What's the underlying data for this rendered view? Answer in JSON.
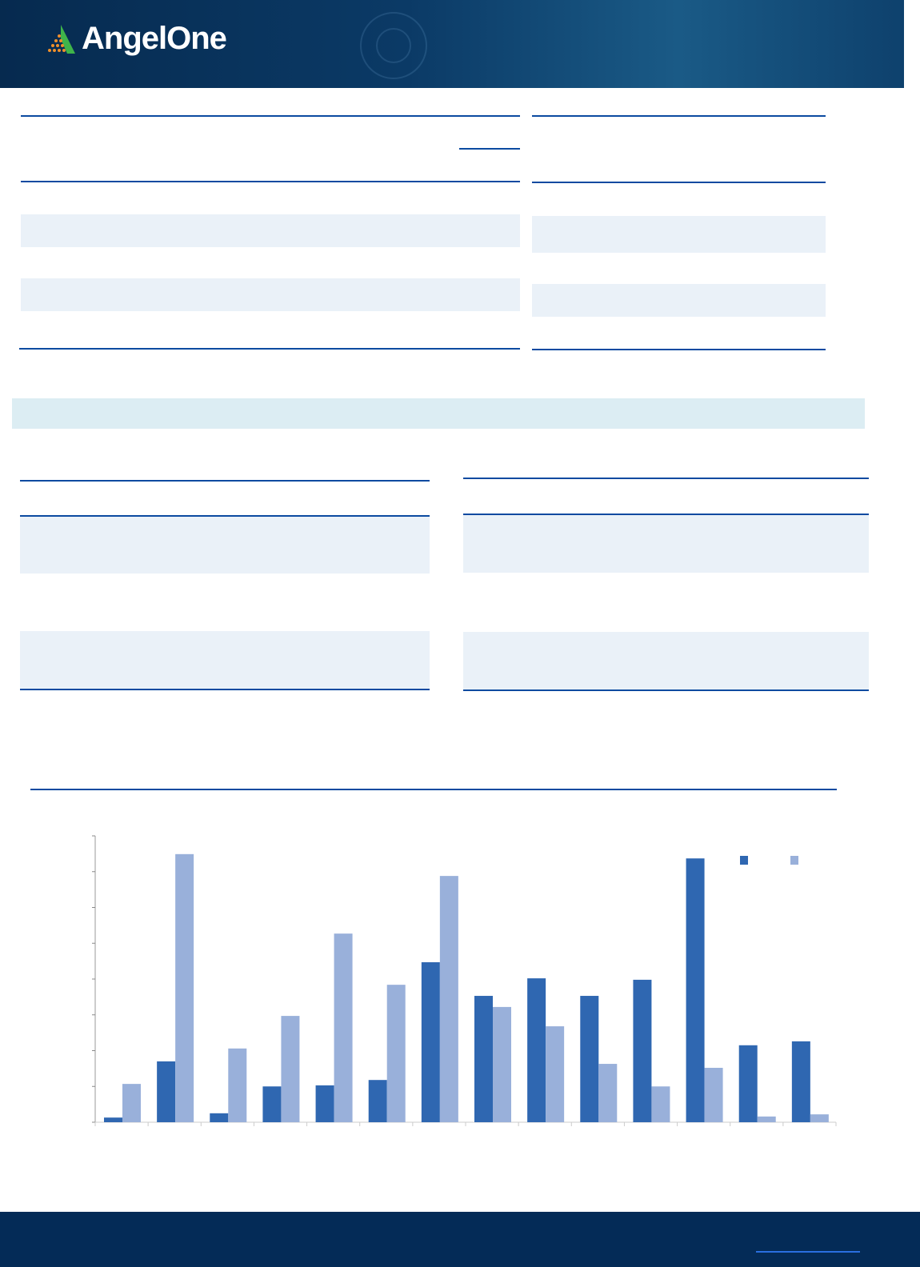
{
  "header": {
    "logo_text": "AngelOne",
    "logo_mark": "angel-one-triangle-logo"
  },
  "colors": {
    "brand_navy": "#062a4f",
    "accent_line": "#0b4aa0",
    "logo_orange": "#f0902a",
    "logo_green": "#3fb44a",
    "series_dark": "#2f67b1",
    "series_light": "#99b0da"
  },
  "chart_data": {
    "type": "bar",
    "title": "",
    "xlabel": "",
    "ylabel": "",
    "ylim": [
      0,
      8
    ],
    "grid": false,
    "legend": "top-right",
    "categories": [
      "",
      "",
      "",
      "",
      "",
      "",
      "",
      "",
      "",
      "",
      "",
      "",
      "",
      ""
    ],
    "series": [
      {
        "values": [
          0.13,
          1.7,
          0.25,
          1.0,
          1.03,
          1.18,
          4.47,
          3.53,
          4.02,
          3.53,
          3.98,
          7.37,
          2.15,
          2.26
        ]
      },
      {
        "values": [
          1.07,
          7.49,
          2.06,
          2.97,
          5.27,
          3.84,
          6.88,
          3.22,
          2.68,
          1.63,
          1.0,
          1.52,
          0.16,
          0.22
        ]
      }
    ]
  }
}
